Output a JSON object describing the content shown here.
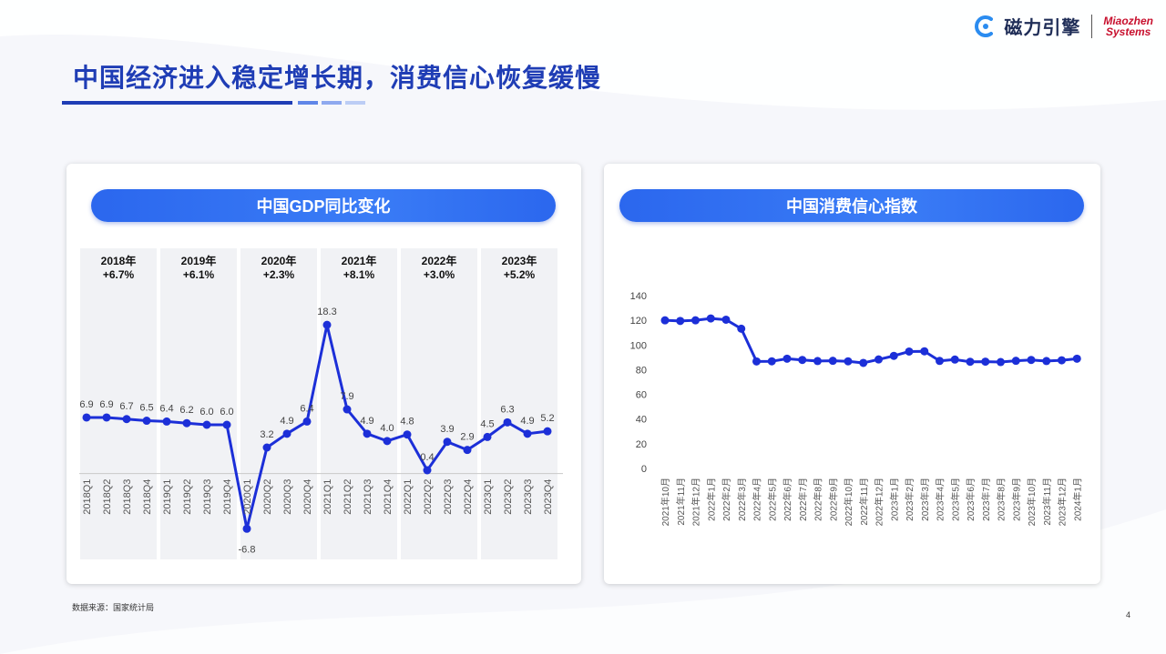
{
  "header": {
    "title": "中国经济进入稳定增长期，消费信心恢复缓慢",
    "brand_cn": "磁力引擎",
    "brand_en_1": "Miaozhen",
    "brand_en_2": "Systems"
  },
  "colors": {
    "accent": "#1f3db5",
    "line": "#1c2fd8",
    "pill": "#2b67ee"
  },
  "footer": {
    "source": "数据来源：国家统计局",
    "page": "4"
  },
  "chart_data": [
    {
      "type": "line",
      "title": "中国GDP同比变化",
      "x": [
        "2018Q1",
        "2018Q2",
        "2018Q3",
        "2018Q4",
        "2019Q1",
        "2019Q2",
        "2019Q3",
        "2019Q4",
        "2020Q1",
        "2020Q2",
        "2020Q3",
        "2020Q4",
        "2021Q1",
        "2021Q2",
        "2021Q3",
        "2021Q4",
        "2022Q1",
        "2022Q2",
        "2022Q3",
        "2022Q4",
        "2023Q1",
        "2023Q2",
        "2023Q3",
        "2023Q4"
      ],
      "values": [
        6.9,
        6.9,
        6.7,
        6.5,
        6.4,
        6.2,
        6.0,
        6.0,
        -6.8,
        3.2,
        4.9,
        6.4,
        18.3,
        7.9,
        4.9,
        4.0,
        4.8,
        0.4,
        3.9,
        2.9,
        4.5,
        6.3,
        4.9,
        5.2
      ],
      "data_labels": [
        "6.9",
        "6.9",
        "6.7",
        "6.5",
        "6.4",
        "6.2",
        "6.0",
        "6.0",
        "-6.8",
        "3.2",
        "4.9",
        "6.4",
        "18.3",
        "7.9",
        "4.9",
        "4.0",
        "4.8",
        "0.4",
        "3.9",
        "2.9",
        "4.5",
        "6.3",
        "4.9",
        "5.2"
      ],
      "groups": [
        {
          "year": "2018年",
          "growth": "+6.7%"
        },
        {
          "year": "2019年",
          "growth": "+6.1%"
        },
        {
          "year": "2020年",
          "growth": "+2.3%"
        },
        {
          "year": "2021年",
          "growth": "+8.1%"
        },
        {
          "year": "2022年",
          "growth": "+3.0%"
        },
        {
          "year": "2023年",
          "growth": "+5.2%"
        }
      ],
      "ylim": [
        -8,
        20
      ],
      "grid": false
    },
    {
      "type": "line",
      "title": "中国消费信心指数",
      "x": [
        "2021年10月",
        "2021年11月",
        "2021年12月",
        "2022年1月",
        "2022年2月",
        "2022年3月",
        "2022年4月",
        "2022年5月",
        "2022年6月",
        "2022年7月",
        "2022年8月",
        "2022年9月",
        "2022年10月",
        "2022年11月",
        "2022年12月",
        "2023年1月",
        "2023年2月",
        "2023年3月",
        "2023年4月",
        "2023年5月",
        "2023年6月",
        "2023年7月",
        "2023年8月",
        "2023年9月",
        "2023年10月",
        "2023年11月",
        "2023年12月",
        "2024年1月"
      ],
      "values": [
        120.0,
        119.5,
        120.0,
        121.5,
        120.5,
        113.2,
        86.7,
        86.8,
        88.9,
        87.9,
        87.0,
        87.2,
        86.8,
        85.5,
        88.3,
        91.2,
        94.7,
        94.9,
        87.1,
        88.2,
        86.4,
        86.5,
        86.2,
        87.2,
        87.9,
        87.0,
        87.6,
        88.9
      ],
      "yticks": [
        "0",
        "20",
        "40",
        "60",
        "80",
        "100",
        "120",
        "140"
      ],
      "ylim": [
        0,
        140
      ],
      "grid": false
    }
  ]
}
